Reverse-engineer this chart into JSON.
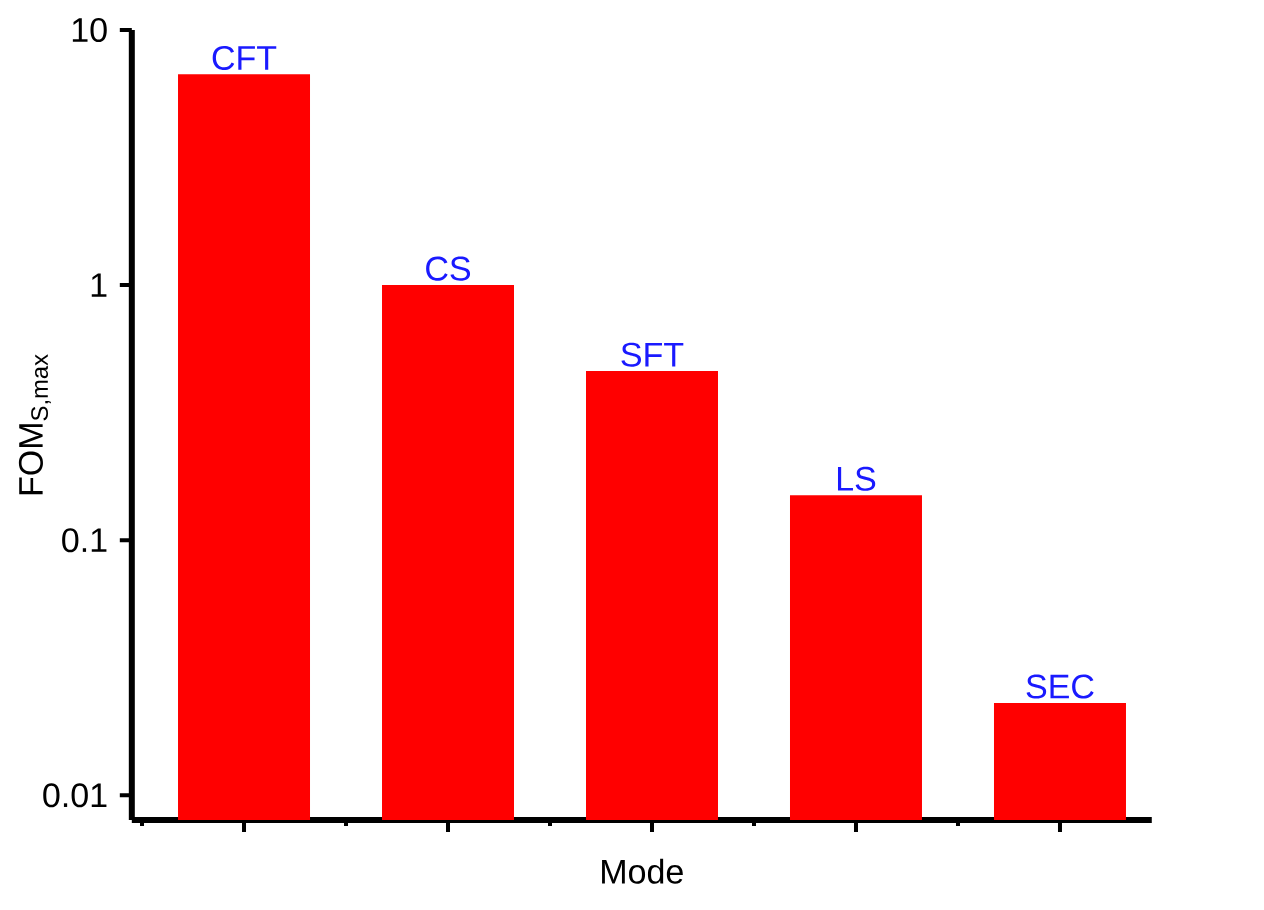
{
  "chart_data": {
    "type": "bar",
    "xlabel": "Mode",
    "ylabel": "FOM$_{S,max}$",
    "categories": [
      "CFT",
      "CS",
      "SFT",
      "LS",
      "SEC"
    ],
    "values": [
      6.7,
      1.0,
      0.46,
      0.15,
      0.023
    ],
    "color": "#ff0000",
    "log": true,
    "ylim": [
      0.008,
      10
    ],
    "yticks": [
      0.01,
      0.1,
      1,
      10
    ],
    "tick_labels": "y",
    "grid": false
  }
}
